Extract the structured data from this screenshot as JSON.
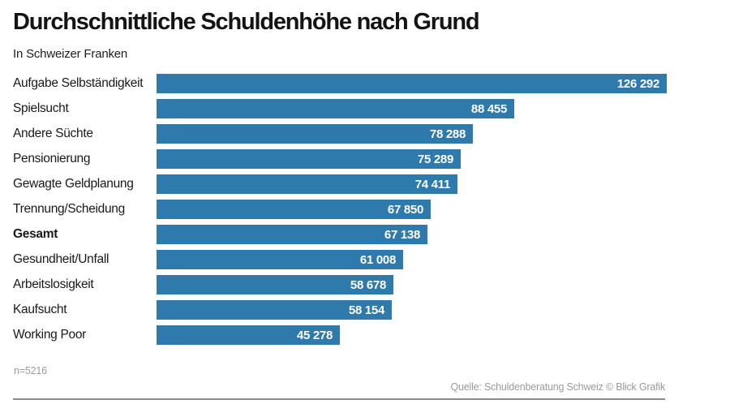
{
  "header": {
    "title": "Durchschnittliche Schuldenhöhe nach Grund",
    "subtitle": "In Schweizer Franken"
  },
  "footer": {
    "sample_note": "n=5216",
    "source": "Quelle: Schuldenberatung Schweiz © Blick Grafik"
  },
  "colors": {
    "bar": "#2f7aac",
    "value_text": "#ffffff",
    "title_text": "#141414",
    "muted_text": "#9b9b9b",
    "rule": "#8a8a8a"
  },
  "chart_data": {
    "type": "bar",
    "orientation": "horizontal",
    "title": "Durchschnittliche Schuldenhöhe nach Grund",
    "subtitle": "In Schweizer Franken",
    "unit": "Schweizer Franken",
    "xlabel": "",
    "ylabel": "",
    "xlim": [
      0,
      126292
    ],
    "grid": false,
    "legend": false,
    "bold_category": "Gesamt",
    "categories": [
      "Aufgabe Selbständigkeit",
      "Spielsucht",
      "Andere Süchte",
      "Pensionierung",
      "Gewagte Geldplanung",
      "Trennung/Scheidung",
      "Gesamt",
      "Gesundheit/Unfall",
      "Arbeitslosigkeit",
      "Kaufsucht",
      "Working Poor"
    ],
    "values": [
      126292,
      88455,
      78288,
      75289,
      74411,
      67850,
      67138,
      61008,
      58678,
      58154,
      45278
    ],
    "value_labels": [
      "126 292",
      "88 455",
      "78 288",
      "75 289",
      "74 411",
      "67 850",
      "67 138",
      "61 008",
      "58 678",
      "58 154",
      "45 278"
    ],
    "sample_note": "n=5216",
    "source": "Quelle: Schuldenberatung Schweiz © Blick Grafik"
  }
}
